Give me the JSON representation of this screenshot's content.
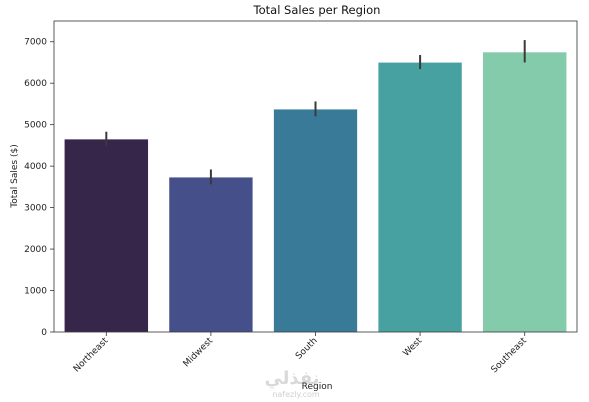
{
  "chart_data": {
    "type": "bar",
    "title": "Total Sales per Region",
    "xlabel": "Region",
    "ylabel": "Total Sales ($)",
    "ylim": [
      0,
      7500
    ],
    "yticks": [
      0,
      1000,
      2000,
      3000,
      4000,
      5000,
      6000,
      7000
    ],
    "categories": [
      "Northeast",
      "Midwest",
      "South",
      "West",
      "Southeast"
    ],
    "values": [
      4650,
      3730,
      5370,
      6500,
      6750
    ],
    "error_low": [
      4480,
      3560,
      5200,
      6340,
      6500
    ],
    "error_high": [
      4830,
      3920,
      5560,
      6680,
      7040
    ],
    "colors": [
      "#35264a",
      "#454f8a",
      "#3a7a99",
      "#46a1a0",
      "#84cbab"
    ],
    "grid": false,
    "legend": "none"
  },
  "watermark": {
    "text": "نفذلي",
    "subtext": "nafezly.com"
  }
}
